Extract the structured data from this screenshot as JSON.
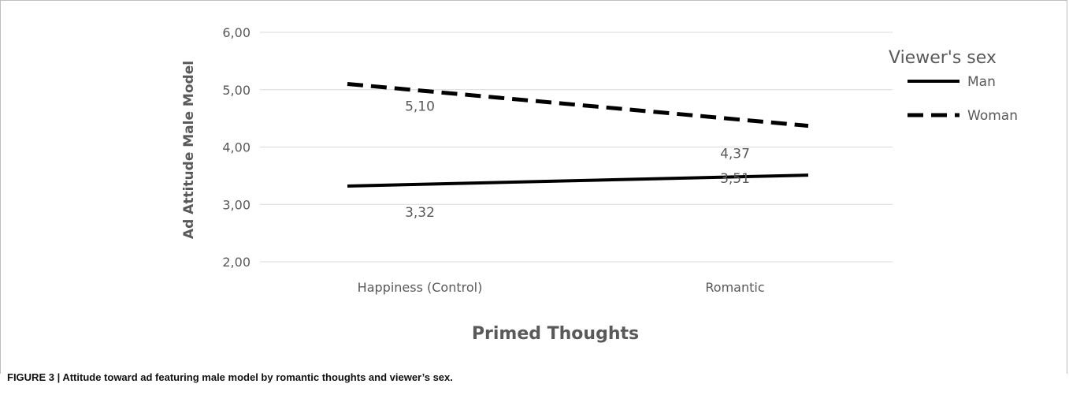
{
  "chart_data": {
    "type": "line",
    "title": "",
    "xlabel": "Primed Thoughts",
    "ylabel": "Ad Attitude Male Model",
    "categories": [
      "Happiness (Control)",
      "Romantic"
    ],
    "y_ticks": [
      "2,00",
      "3,00",
      "4,00",
      "5,00",
      "6,00"
    ],
    "ylim": [
      2,
      6
    ],
    "grid": true,
    "legend": {
      "title": "Viewer's sex",
      "position": "top-right"
    },
    "series": [
      {
        "name": "Man",
        "values": [
          3.32,
          3.51
        ],
        "labels": [
          "3,32",
          "3,51"
        ],
        "style": "solid",
        "color": "#000000"
      },
      {
        "name": "Woman",
        "values": [
          5.1,
          4.37
        ],
        "labels": [
          "5,10",
          "4,37"
        ],
        "style": "dashed",
        "color": "#000000"
      }
    ]
  },
  "caption": {
    "label": "FIGURE 3 |",
    "text": "Attitude toward ad featuring male model by romantic thoughts and viewer’s sex."
  },
  "colors": {
    "grid": "#d9d9d9",
    "tick_text": "#595959",
    "axis_title": "#595959",
    "line": "#000000"
  }
}
